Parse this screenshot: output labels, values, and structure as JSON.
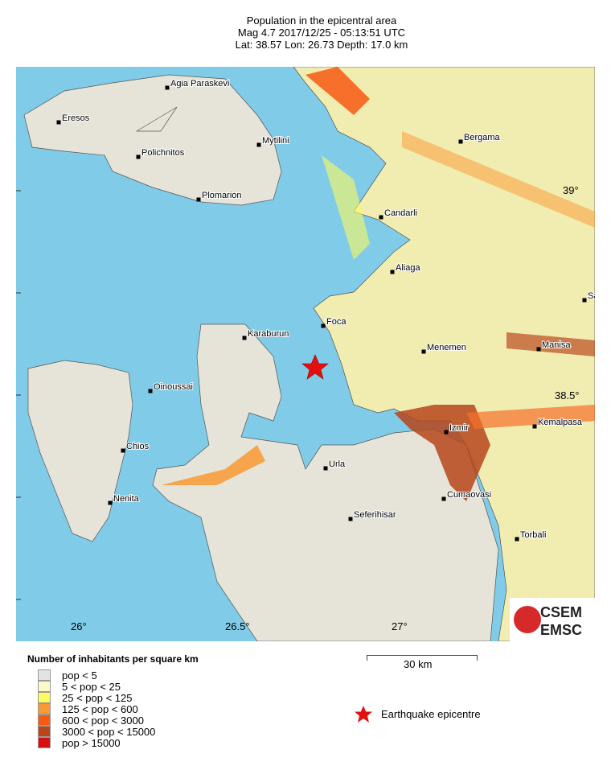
{
  "header": {
    "title": "Population in the epicentral area",
    "line2": "Mag 4.7  2017/12/25 - 05:13:51 UTC",
    "line3": "Lat: 38.57    Lon:  26.73    Depth:  17.0 km"
  },
  "map": {
    "sea_color": "#7fcbe8",
    "lon_labels": [
      "26°",
      "26.5°",
      "27°"
    ],
    "lat_labels": [
      "39°",
      "38.5°"
    ],
    "cities": [
      "Agia Paraskevi",
      "Eresos",
      "Mytilini",
      "Polichnitos",
      "Plomarion",
      "Bergama",
      "Candarli",
      "Aliaga",
      "Sa",
      "Foca",
      "Karaburun",
      "Menemen",
      "Manisa",
      "Oinoussai",
      "Kemalpasa",
      "Izmir",
      "Chios",
      "Urla",
      "Cumaovasi",
      "Nenita",
      "Seferihisar",
      "Torbali"
    ],
    "epicentre": {
      "lat": 38.57,
      "lon": 26.73,
      "icon": "red-star-icon"
    }
  },
  "scale_bar": {
    "label": "30 km"
  },
  "logo": {
    "top": "CSEM",
    "bottom": "EMSC"
  },
  "legend": {
    "title": "Number of inhabitants per square km",
    "classes": [
      {
        "label": "pop < 5",
        "color": "#e3e3e3"
      },
      {
        "label": "5 < pop < 25",
        "color": "#fbf9c8"
      },
      {
        "label": "25 < pop < 125",
        "color": "#fcfa5e"
      },
      {
        "label": "125 < pop < 600",
        "color": "#fb9a33"
      },
      {
        "label": "600 < pop < 3000",
        "color": "#f85a14"
      },
      {
        "label": "3000 < pop < 15000",
        "color": "#b8461a"
      },
      {
        "label": "pop > 15000",
        "color": "#d60f0f"
      }
    ],
    "epicentre_label": "Earthquake epicentre"
  }
}
